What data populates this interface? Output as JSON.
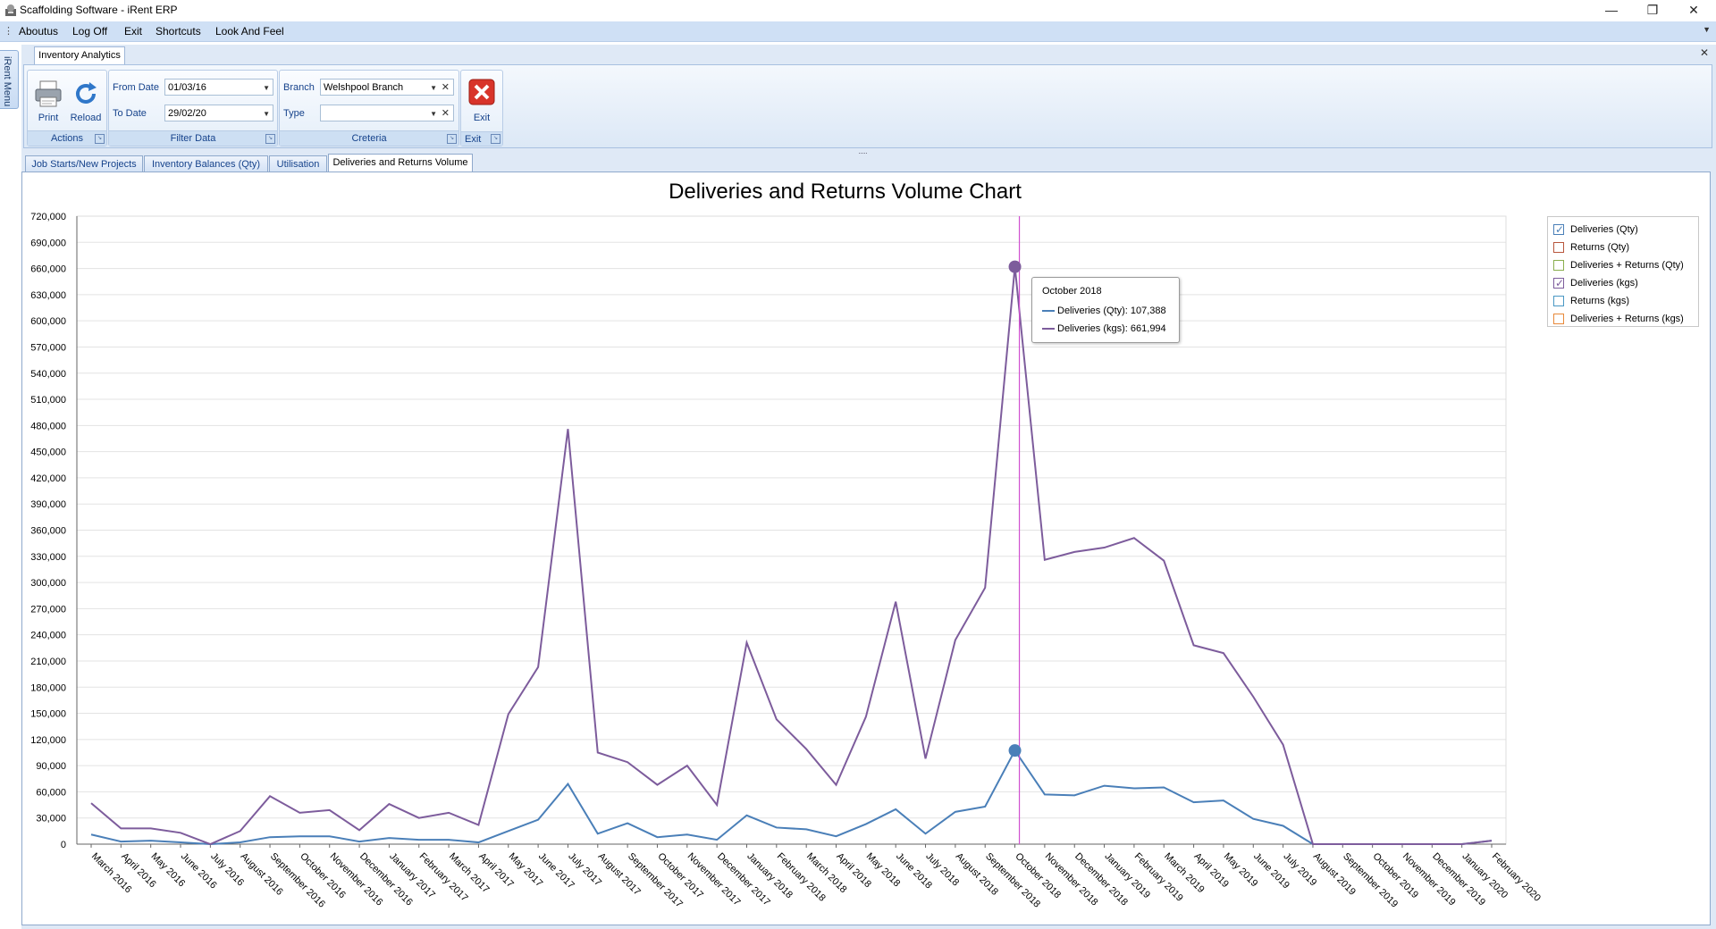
{
  "window": {
    "title": "Scaffolding Software - iRent ERP",
    "minimize": "—",
    "restore": "❐",
    "close": "✕"
  },
  "menu": {
    "items": [
      "Aboutus",
      "Log Off",
      "Exit",
      "Shortcuts",
      "Look And Feel"
    ]
  },
  "side_tab": "iRent Menu",
  "doc_tab": "Inventory Analytics",
  "ribbon": {
    "actions": {
      "print": "Print",
      "reload": "Reload",
      "label": "Actions"
    },
    "filter": {
      "from_label": "From Date",
      "from_value": "01/03/16",
      "to_label": "To Date",
      "to_value": "29/02/20",
      "label": "Filter Data"
    },
    "criteria": {
      "branch_label": "Branch",
      "branch_value": "Welshpool Branch",
      "type_label": "Type",
      "type_value": "",
      "label": "Creteria"
    },
    "exit": {
      "button": "Exit",
      "label": "Exit"
    }
  },
  "tabs": [
    "Job Starts/New Projects",
    "Inventory Balances (Qty)",
    "Utilisation",
    "Deliveries and Returns Volume"
  ],
  "active_tab": 3,
  "legend": [
    {
      "label": "Deliveries (Qty)",
      "color": "#4a7fb8",
      "checked": true
    },
    {
      "label": "Returns (Qty)",
      "color": "#b8563c",
      "checked": false
    },
    {
      "label": "Deliveries + Returns (Qty)",
      "color": "#8aae4e",
      "checked": false
    },
    {
      "label": "Deliveries (kgs)",
      "color": "#7d5c9c",
      "checked": true
    },
    {
      "label": "Returns (kgs)",
      "color": "#4a98c4",
      "checked": false
    },
    {
      "label": "Deliveries + Returns (kgs)",
      "color": "#e8893a",
      "checked": false
    }
  ],
  "tooltip": {
    "title": "October 2018",
    "rows": [
      "Deliveries (Qty): 107,388",
      "Deliveries (kgs): 661,994"
    ]
  },
  "chart_data": {
    "type": "line",
    "title": "Deliveries and Returns Volume Chart",
    "ylim": [
      0,
      720000
    ],
    "ytick_step": 30000,
    "grid": true,
    "legend_position": "right",
    "crosshair_category": "October 2018",
    "categories": [
      "March 2016",
      "April 2016",
      "May 2016",
      "June 2016",
      "July 2016",
      "August 2016",
      "September 2016",
      "October 2016",
      "November 2016",
      "December 2016",
      "January 2017",
      "February 2017",
      "March 2017",
      "April 2017",
      "May 2017",
      "June 2017",
      "July 2017",
      "August 2017",
      "September 2017",
      "October 2017",
      "November 2017",
      "December 2017",
      "January 2018",
      "February 2018",
      "March 2018",
      "April 2018",
      "May 2018",
      "June 2018",
      "July 2018",
      "August 2018",
      "September 2018",
      "October 2018",
      "November 2018",
      "December 2018",
      "January 2019",
      "February 2019",
      "March 2019",
      "April 2019",
      "May 2019",
      "June 2019",
      "July 2019",
      "August 2019",
      "September 2019",
      "October 2019",
      "November 2019",
      "December 2019",
      "January 2020",
      "February 2020"
    ],
    "series": [
      {
        "name": "Deliveries (Qty)",
        "color": "#4a7fb8",
        "values": [
          11000,
          3000,
          4000,
          2000,
          0,
          2000,
          8000,
          9000,
          9000,
          3000,
          7000,
          5000,
          5000,
          2000,
          15000,
          28000,
          69000,
          12000,
          24000,
          8000,
          11000,
          5000,
          33000,
          19000,
          17000,
          9000,
          23000,
          40000,
          12000,
          37000,
          43000,
          107388,
          57000,
          56000,
          67000,
          64000,
          65000,
          48000,
          50000,
          29000,
          21000,
          0,
          0,
          0,
          0,
          0,
          0,
          4000
        ]
      },
      {
        "name": "Deliveries (kgs)",
        "color": "#7d5c9c",
        "values": [
          47000,
          18000,
          18000,
          13000,
          0,
          15000,
          55000,
          36000,
          39000,
          16000,
          46000,
          30000,
          36000,
          22000,
          149000,
          203000,
          476000,
          105000,
          94000,
          68000,
          90000,
          45000,
          231000,
          143000,
          109000,
          68000,
          146000,
          278000,
          98000,
          234000,
          294000,
          661994,
          326000,
          335000,
          340000,
          351000,
          325000,
          228000,
          219000,
          169000,
          114000,
          0,
          0,
          0,
          0,
          0,
          0,
          4000
        ]
      }
    ]
  }
}
